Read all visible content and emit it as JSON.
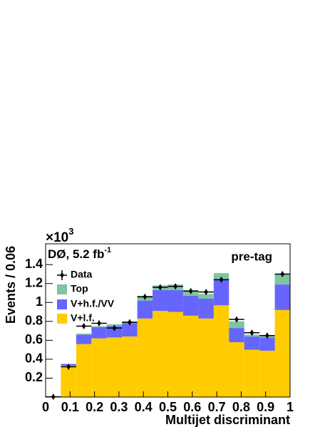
{
  "chart_data": {
    "type": "histogram",
    "stacked": true,
    "title_scale": {
      "base": "×10",
      "exponent": "3"
    },
    "experiment": {
      "text": "DØ, 5.2 fb",
      "exponent": "-1"
    },
    "selection": "pre-tag",
    "ylabel": "Events / 0.06",
    "xlabel": "Multijet discriminant",
    "bins": [
      0,
      0.0625,
      0.125,
      0.1875,
      0.25,
      0.3125,
      0.375,
      0.4375,
      0.5,
      0.5625,
      0.625,
      0.6875,
      0.75,
      0.8125,
      0.875,
      0.9375,
      1
    ],
    "series": [
      {
        "name": "V+l.f.",
        "color": "#ffcc00",
        "values": [
          0,
          0.33,
          0.56,
          0.62,
          0.63,
          0.64,
          0.83,
          0.91,
          0.9,
          0.86,
          0.83,
          0.97,
          0.58,
          0.5,
          0.49,
          0.92
        ]
      },
      {
        "name": "V+h.f./VV",
        "color": "#6666ff",
        "values": [
          0,
          0.02,
          0.1,
          0.12,
          0.12,
          0.14,
          0.19,
          0.22,
          0.23,
          0.21,
          0.21,
          0.27,
          0.15,
          0.14,
          0.14,
          0.27
        ]
      },
      {
        "name": "Top",
        "color": "#7fc59f",
        "values": [
          0,
          0,
          0.01,
          0.01,
          0.02,
          0.02,
          0.05,
          0.05,
          0.06,
          0.06,
          0.05,
          0.07,
          0.07,
          0.02,
          0.02,
          0.11
        ]
      }
    ],
    "data": {
      "name": "Data",
      "color": "#000000",
      "values": [
        0.003,
        0.32,
        0.75,
        0.78,
        0.73,
        0.79,
        1.06,
        1.16,
        1.17,
        1.12,
        1.11,
        1.24,
        0.82,
        0.68,
        0.65,
        1.3
      ]
    },
    "xlim": [
      0,
      1
    ],
    "ylim": [
      0,
      1.62
    ],
    "xticks": [
      0,
      0.1,
      0.2,
      0.3,
      0.4,
      0.5,
      0.6,
      0.7,
      0.8,
      0.9,
      1
    ],
    "yticks": [
      0.2,
      0.4,
      0.6,
      0.8,
      1,
      1.2,
      1.4
    ],
    "legend": "upper left"
  }
}
